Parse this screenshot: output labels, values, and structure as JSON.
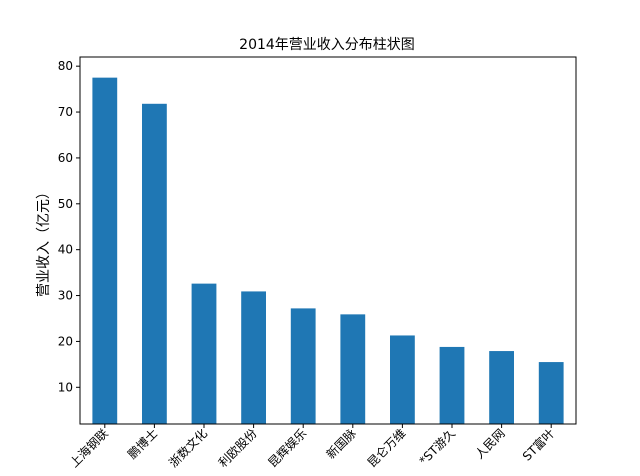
{
  "chart_data": {
    "type": "bar",
    "title": "2014年营业收入分布柱状图",
    "xlabel": "",
    "ylabel": "营业收入（亿元）",
    "categories": [
      "上海钢联",
      "鹏博士",
      "浙数文化",
      "利欧股份",
      "昆辉娱乐",
      "新国脉",
      "昆仑万维",
      "*ST游久",
      "人民网",
      "ST富叶"
    ],
    "values": [
      77.5,
      71.8,
      32.6,
      30.9,
      27.2,
      25.9,
      21.3,
      18.8,
      17.9,
      15.5
    ],
    "ylim": [
      2,
      82
    ],
    "yticks": [
      10,
      20,
      30,
      40,
      50,
      60,
      70,
      80
    ],
    "bar_color": "#1f77b4",
    "grid": false,
    "legend": "none"
  }
}
